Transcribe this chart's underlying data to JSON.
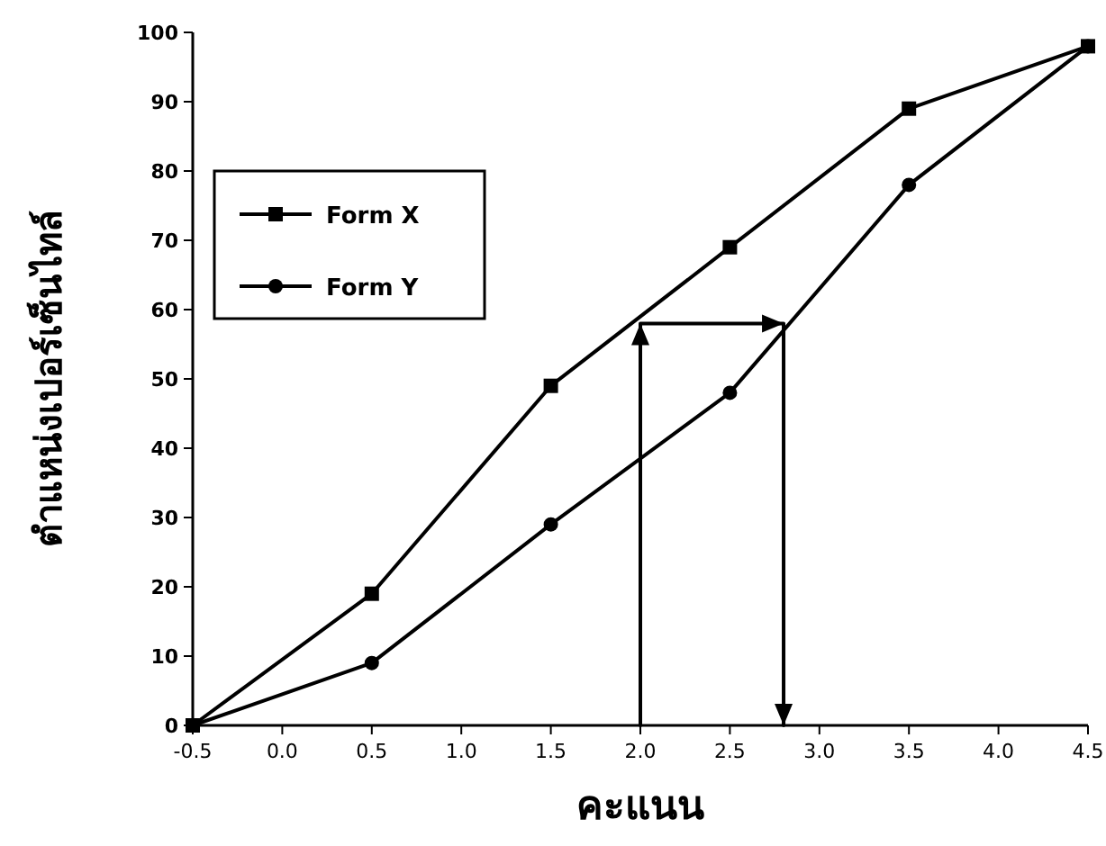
{
  "chart_data": {
    "type": "line",
    "xlabel": "คะแนน",
    "ylabel": "ตำแหน่งเปอร์เซ็นไทล์",
    "xlim": [
      -0.5,
      4.5
    ],
    "xticks": [
      -0.5,
      {
        "value": 0,
        "label": "0.0"
      },
      0.5,
      {
        "value": 1,
        "label": "1.0"
      },
      1.5,
      {
        "value": 2,
        "label": "2.0"
      },
      2.5,
      {
        "value": 3,
        "label": "3.0"
      },
      3.5,
      {
        "value": 4,
        "label": "4.0"
      },
      4.5
    ],
    "ylim": [
      0,
      100
    ],
    "yticks": [
      0,
      10,
      20,
      30,
      40,
      50,
      60,
      70,
      80,
      90,
      100
    ],
    "grid": false,
    "legend": "top left",
    "line_style": "solid",
    "series": [
      {
        "name": "Form X",
        "color": "#000000",
        "marker": "square",
        "x": [
          -0.5,
          0.5,
          1.5,
          2.5,
          3.5,
          4.5
        ],
        "values": [
          0,
          19,
          49,
          69,
          89,
          98
        ]
      },
      {
        "name": "Form Y",
        "color": "#000000",
        "marker": "circle",
        "x": [
          -0.5,
          0.5,
          1.5,
          2.5,
          3.5,
          4.5
        ],
        "values": [
          0,
          9,
          29,
          48,
          78,
          98
        ]
      },
      {
        "color": "#000000",
        "marker": "none",
        "x": [
          2.0,
          2.0,
          2.8,
          2.8
        ],
        "values": [
          0,
          58,
          58,
          0
        ]
      }
    ]
  }
}
